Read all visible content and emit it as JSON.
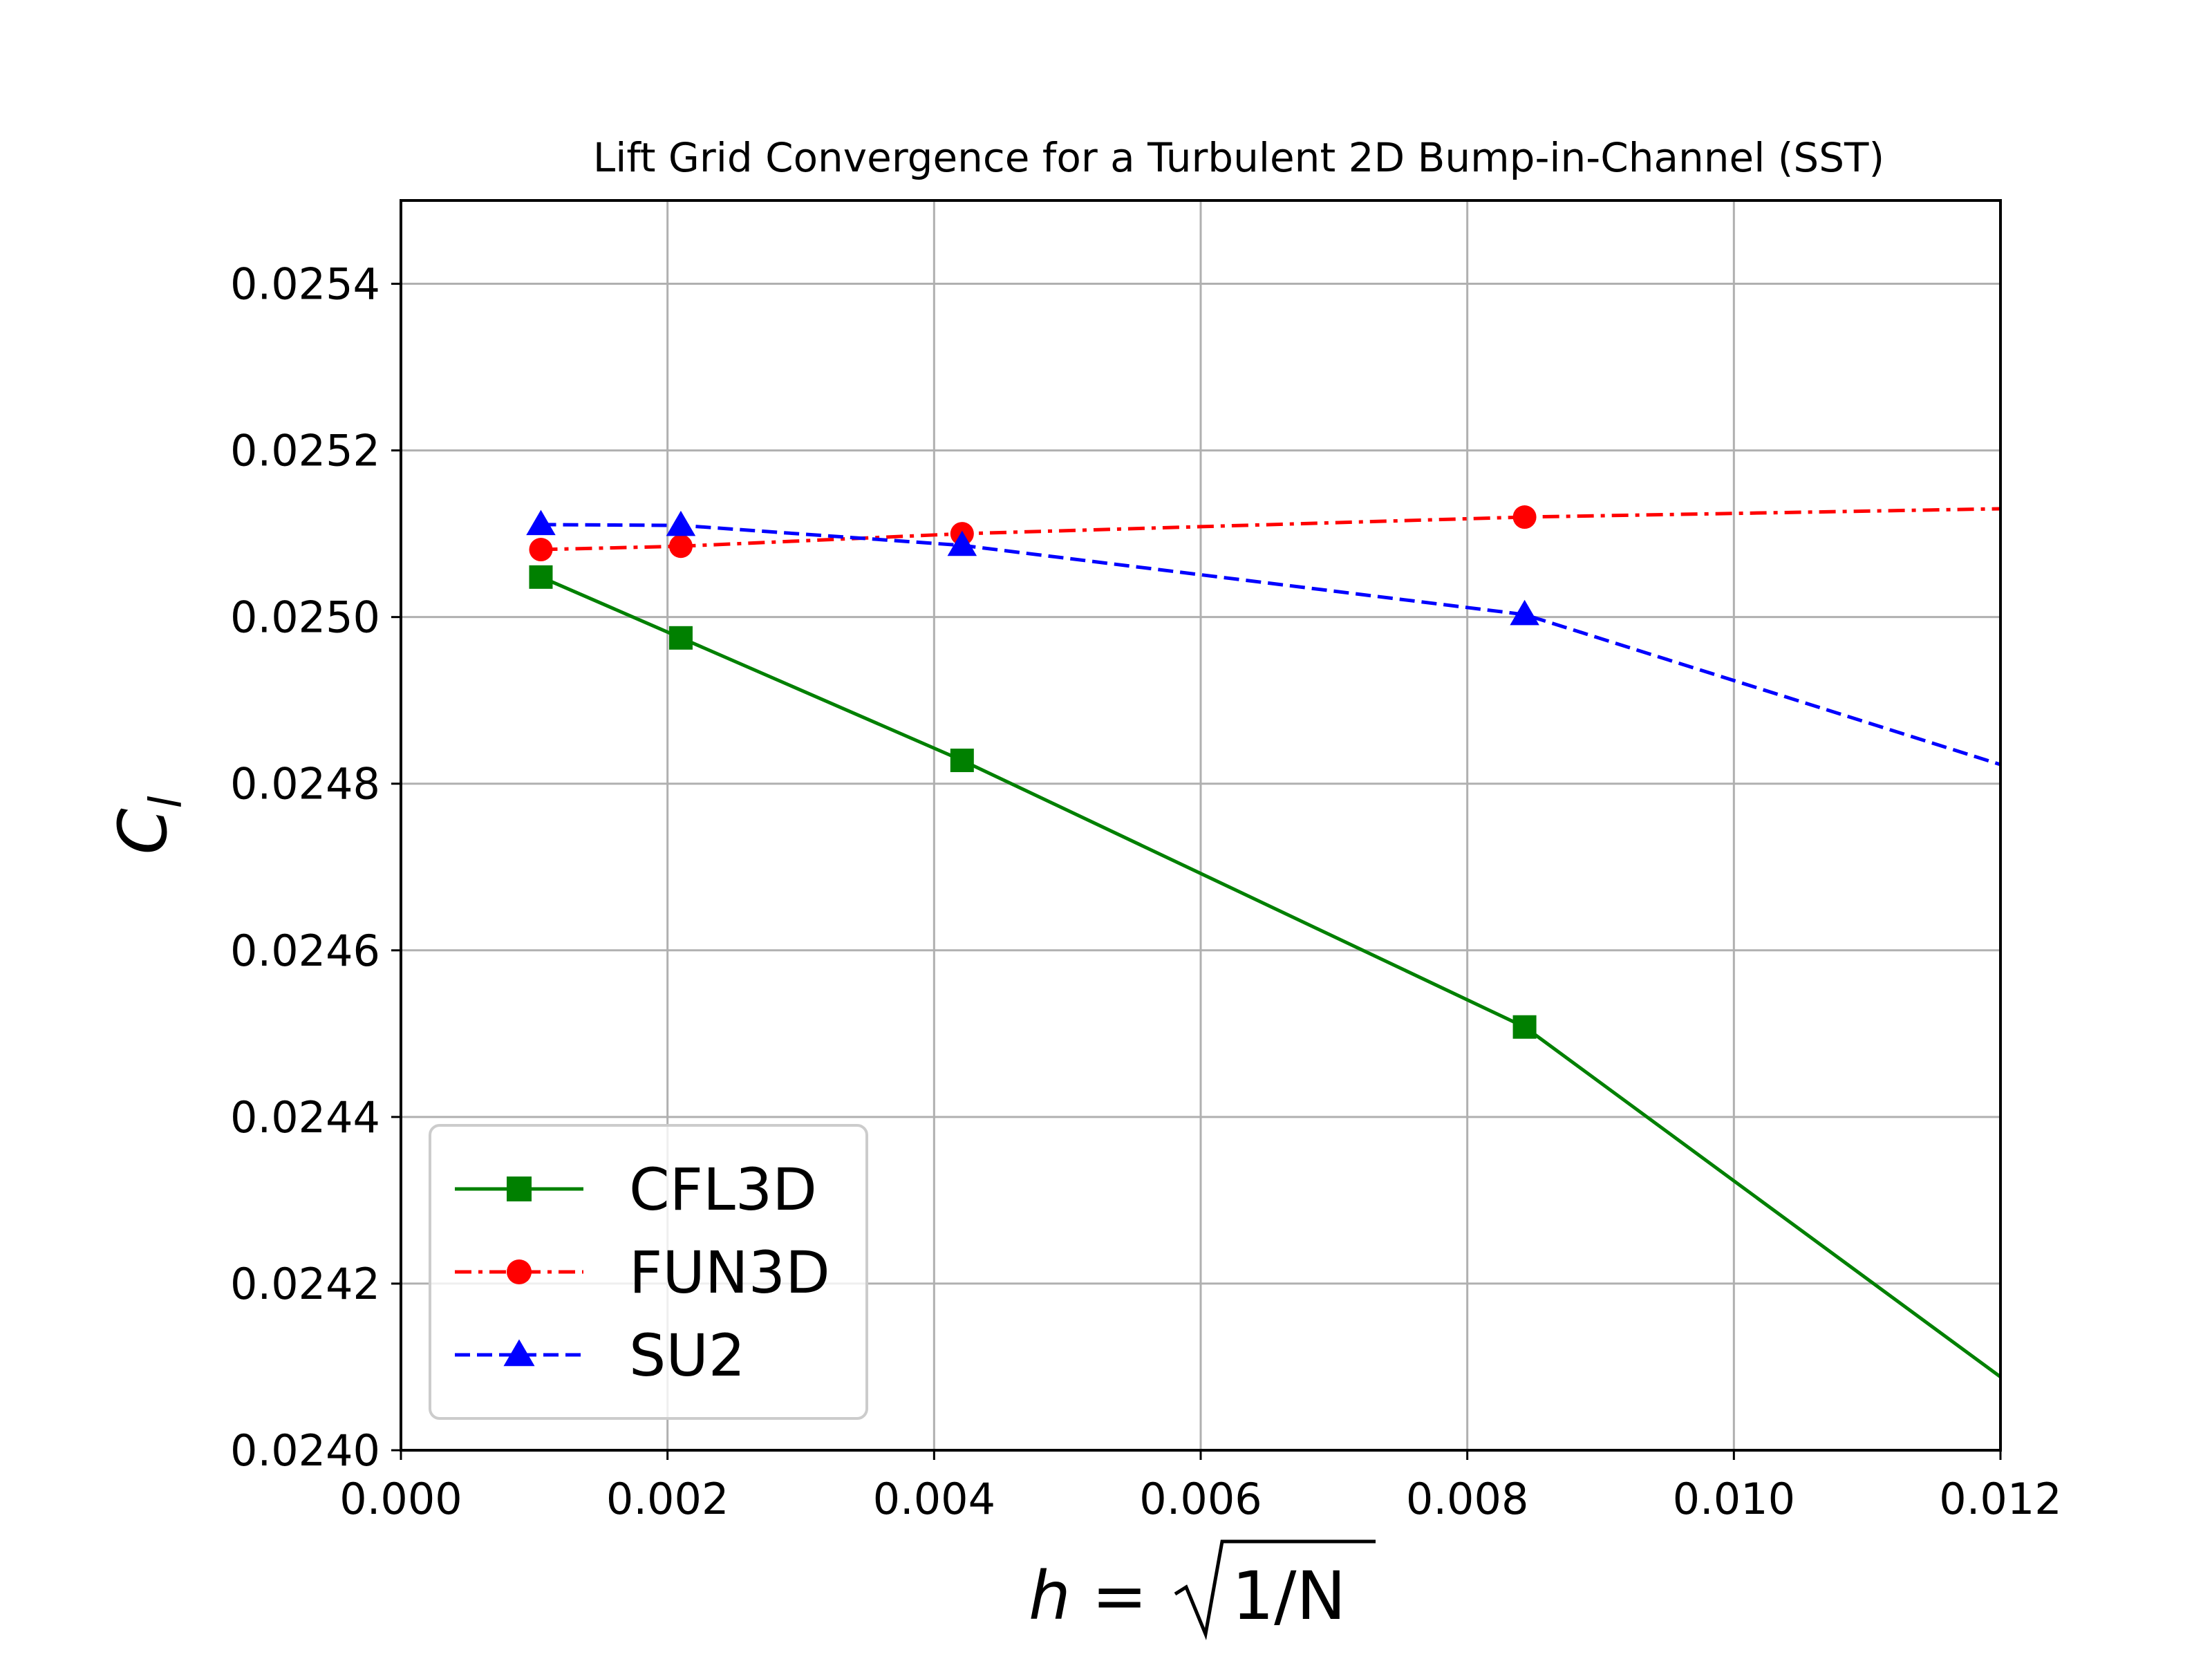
{
  "chart_data": {
    "type": "line",
    "title": "Lift Grid Convergence for a Turbulent 2D Bump-in-Channel (SST)",
    "xlabel": "h = √1/N",
    "xlabel_parts": {
      "h": "h",
      "eq": " = ",
      "radicand": "1/N"
    },
    "ylabel": "C",
    "ylabel_sub": "l",
    "xlim": [
      0.0,
      0.012
    ],
    "ylim": [
      0.024,
      0.0255
    ],
    "x_ticks": [
      "0.000",
      "0.002",
      "0.004",
      "0.006",
      "0.008",
      "0.010",
      "0.012"
    ],
    "y_ticks": [
      "0.0240",
      "0.0242",
      "0.0244",
      "0.0246",
      "0.0248",
      "0.0250",
      "0.0252",
      "0.0254"
    ],
    "grid": true,
    "legend_position": "lower-left",
    "series": [
      {
        "name": "CFL3D",
        "color": "#008000",
        "dash": "solid",
        "marker": "square",
        "x": [
          0.00105,
          0.0021,
          0.00421,
          0.00843,
          0.012
        ],
        "y": [
          0.025048,
          0.024975,
          0.024828,
          0.024508,
          0.024088
        ],
        "markers": [
          true,
          true,
          true,
          true,
          false
        ]
      },
      {
        "name": "FUN3D",
        "color": "#ff0000",
        "dash": "dashdot",
        "marker": "circle",
        "x": [
          0.00105,
          0.0021,
          0.00421,
          0.00843,
          0.012
        ],
        "y": [
          0.025081,
          0.025085,
          0.0251,
          0.02512,
          0.02513
        ],
        "markers": [
          true,
          true,
          true,
          true,
          false
        ]
      },
      {
        "name": "SU2",
        "color": "#0000ff",
        "dash": "dashed",
        "marker": "triangle",
        "x": [
          0.00105,
          0.0021,
          0.00421,
          0.00843,
          0.012
        ],
        "y": [
          0.025111,
          0.02511,
          0.025086,
          0.025003,
          0.024823
        ],
        "markers": [
          true,
          true,
          true,
          true,
          false
        ]
      }
    ]
  }
}
